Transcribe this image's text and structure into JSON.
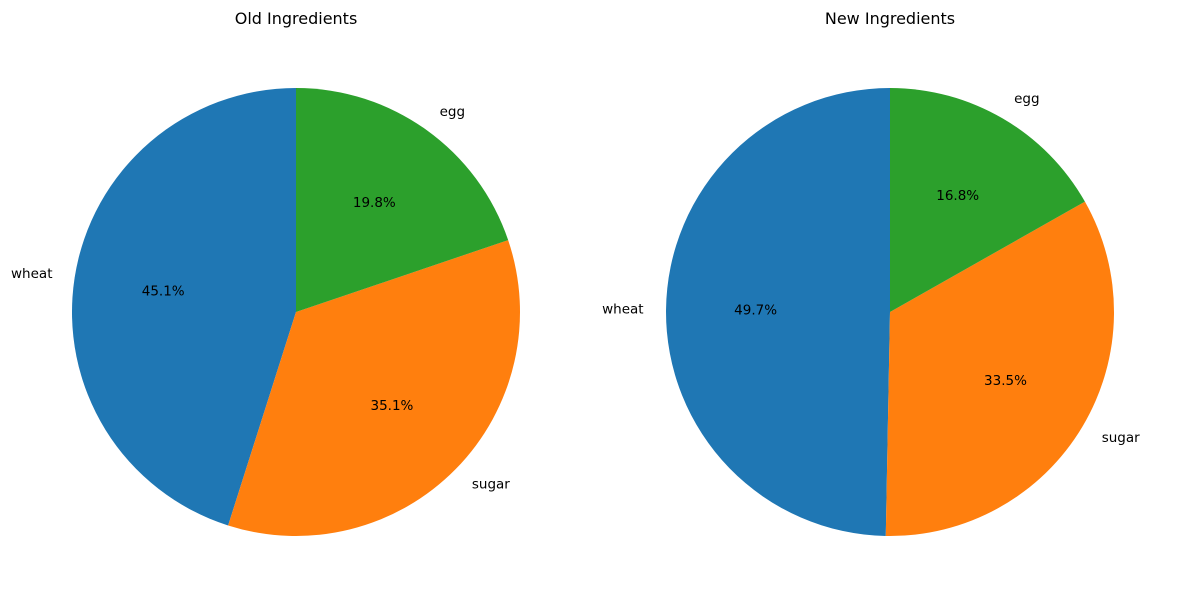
{
  "chart_data": [
    {
      "type": "pie",
      "title": "Old Ingredients",
      "categories": [
        "wheat",
        "sugar",
        "egg"
      ],
      "values": [
        45.1,
        35.1,
        19.8
      ],
      "value_labels": [
        "45.1%",
        "35.1%",
        "19.8%"
      ],
      "colors": [
        "#1f77b4",
        "#ff7f0e",
        "#2ca02c"
      ],
      "start_angle_deg": 90,
      "direction": "counterclockwise"
    },
    {
      "type": "pie",
      "title": "New Ingredients",
      "categories": [
        "wheat",
        "sugar",
        "egg"
      ],
      "values": [
        49.7,
        33.5,
        16.8
      ],
      "value_labels": [
        "49.7%",
        "33.5%",
        "16.8%"
      ],
      "colors": [
        "#1f77b4",
        "#ff7f0e",
        "#2ca02c"
      ],
      "start_angle_deg": 90,
      "direction": "counterclockwise"
    }
  ]
}
